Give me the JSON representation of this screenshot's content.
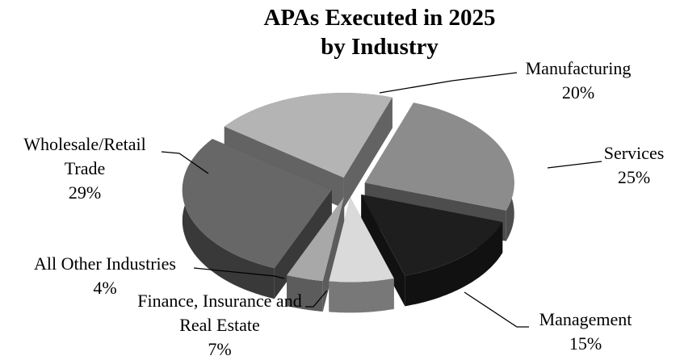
{
  "chart_data": {
    "type": "pie3d",
    "title": "APAs Executed in 2025 by Industry",
    "categories": [
      "Manufacturing",
      "Services",
      "Management",
      "Finance, Insurance and Real Estate",
      "All Other Industries",
      "Wholesale/Retail Trade"
    ],
    "values": [
      20,
      25,
      15,
      7,
      4,
      29
    ],
    "value_labels": [
      "20%",
      "25%",
      "15%",
      "7%",
      "4%",
      "29%"
    ],
    "colors": [
      "#b4b4b4",
      "#8c8c8c",
      "#1e1e1e",
      "#dadada",
      "#a8a8a8",
      "#676767"
    ]
  }
}
